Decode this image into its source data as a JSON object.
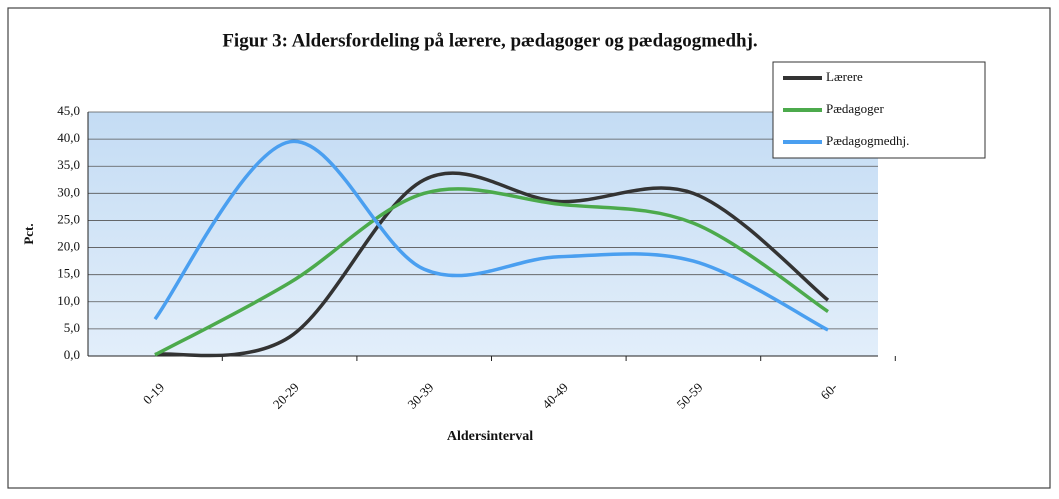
{
  "chart_data": {
    "type": "line",
    "title": "Figur 3: Aldersfordeling på lærere, pædagoger og pædagogmedhj.",
    "x_label": "Aldersinterval",
    "y_label": "Pct.",
    "categories": [
      "0-19",
      "20-29",
      "30-39",
      "40-49",
      "50-59",
      "60-"
    ],
    "series": [
      {
        "name": "Lærere",
        "color": "#333333",
        "values": [
          0.3,
          3.5,
          32.5,
          28.5,
          30.0,
          10.3
        ]
      },
      {
        "name": "Pædagoger",
        "color": "#4caa4c",
        "values": [
          0.2,
          13.5,
          30.0,
          28.0,
          24.5,
          8.2
        ]
      },
      {
        "name": "Pædagogmedhj.",
        "color": "#4a9ff0",
        "values": [
          6.8,
          39.5,
          16.0,
          18.3,
          17.5,
          4.8
        ]
      }
    ],
    "ylim": [
      0,
      45
    ],
    "yticks": [
      {
        "value": 0,
        "label": "0,0"
      },
      {
        "value": 5,
        "label": "5,0"
      },
      {
        "value": 10,
        "label": "10,0"
      },
      {
        "value": 15,
        "label": "15,0"
      },
      {
        "value": 20,
        "label": "20,0"
      },
      {
        "value": 25,
        "label": "25,0"
      },
      {
        "value": 30,
        "label": "30,0"
      },
      {
        "value": 35,
        "label": "35,0"
      },
      {
        "value": 40,
        "label": "40,0"
      },
      {
        "value": 45,
        "label": "45,0"
      }
    ],
    "grid": true,
    "legend": "upper right"
  }
}
